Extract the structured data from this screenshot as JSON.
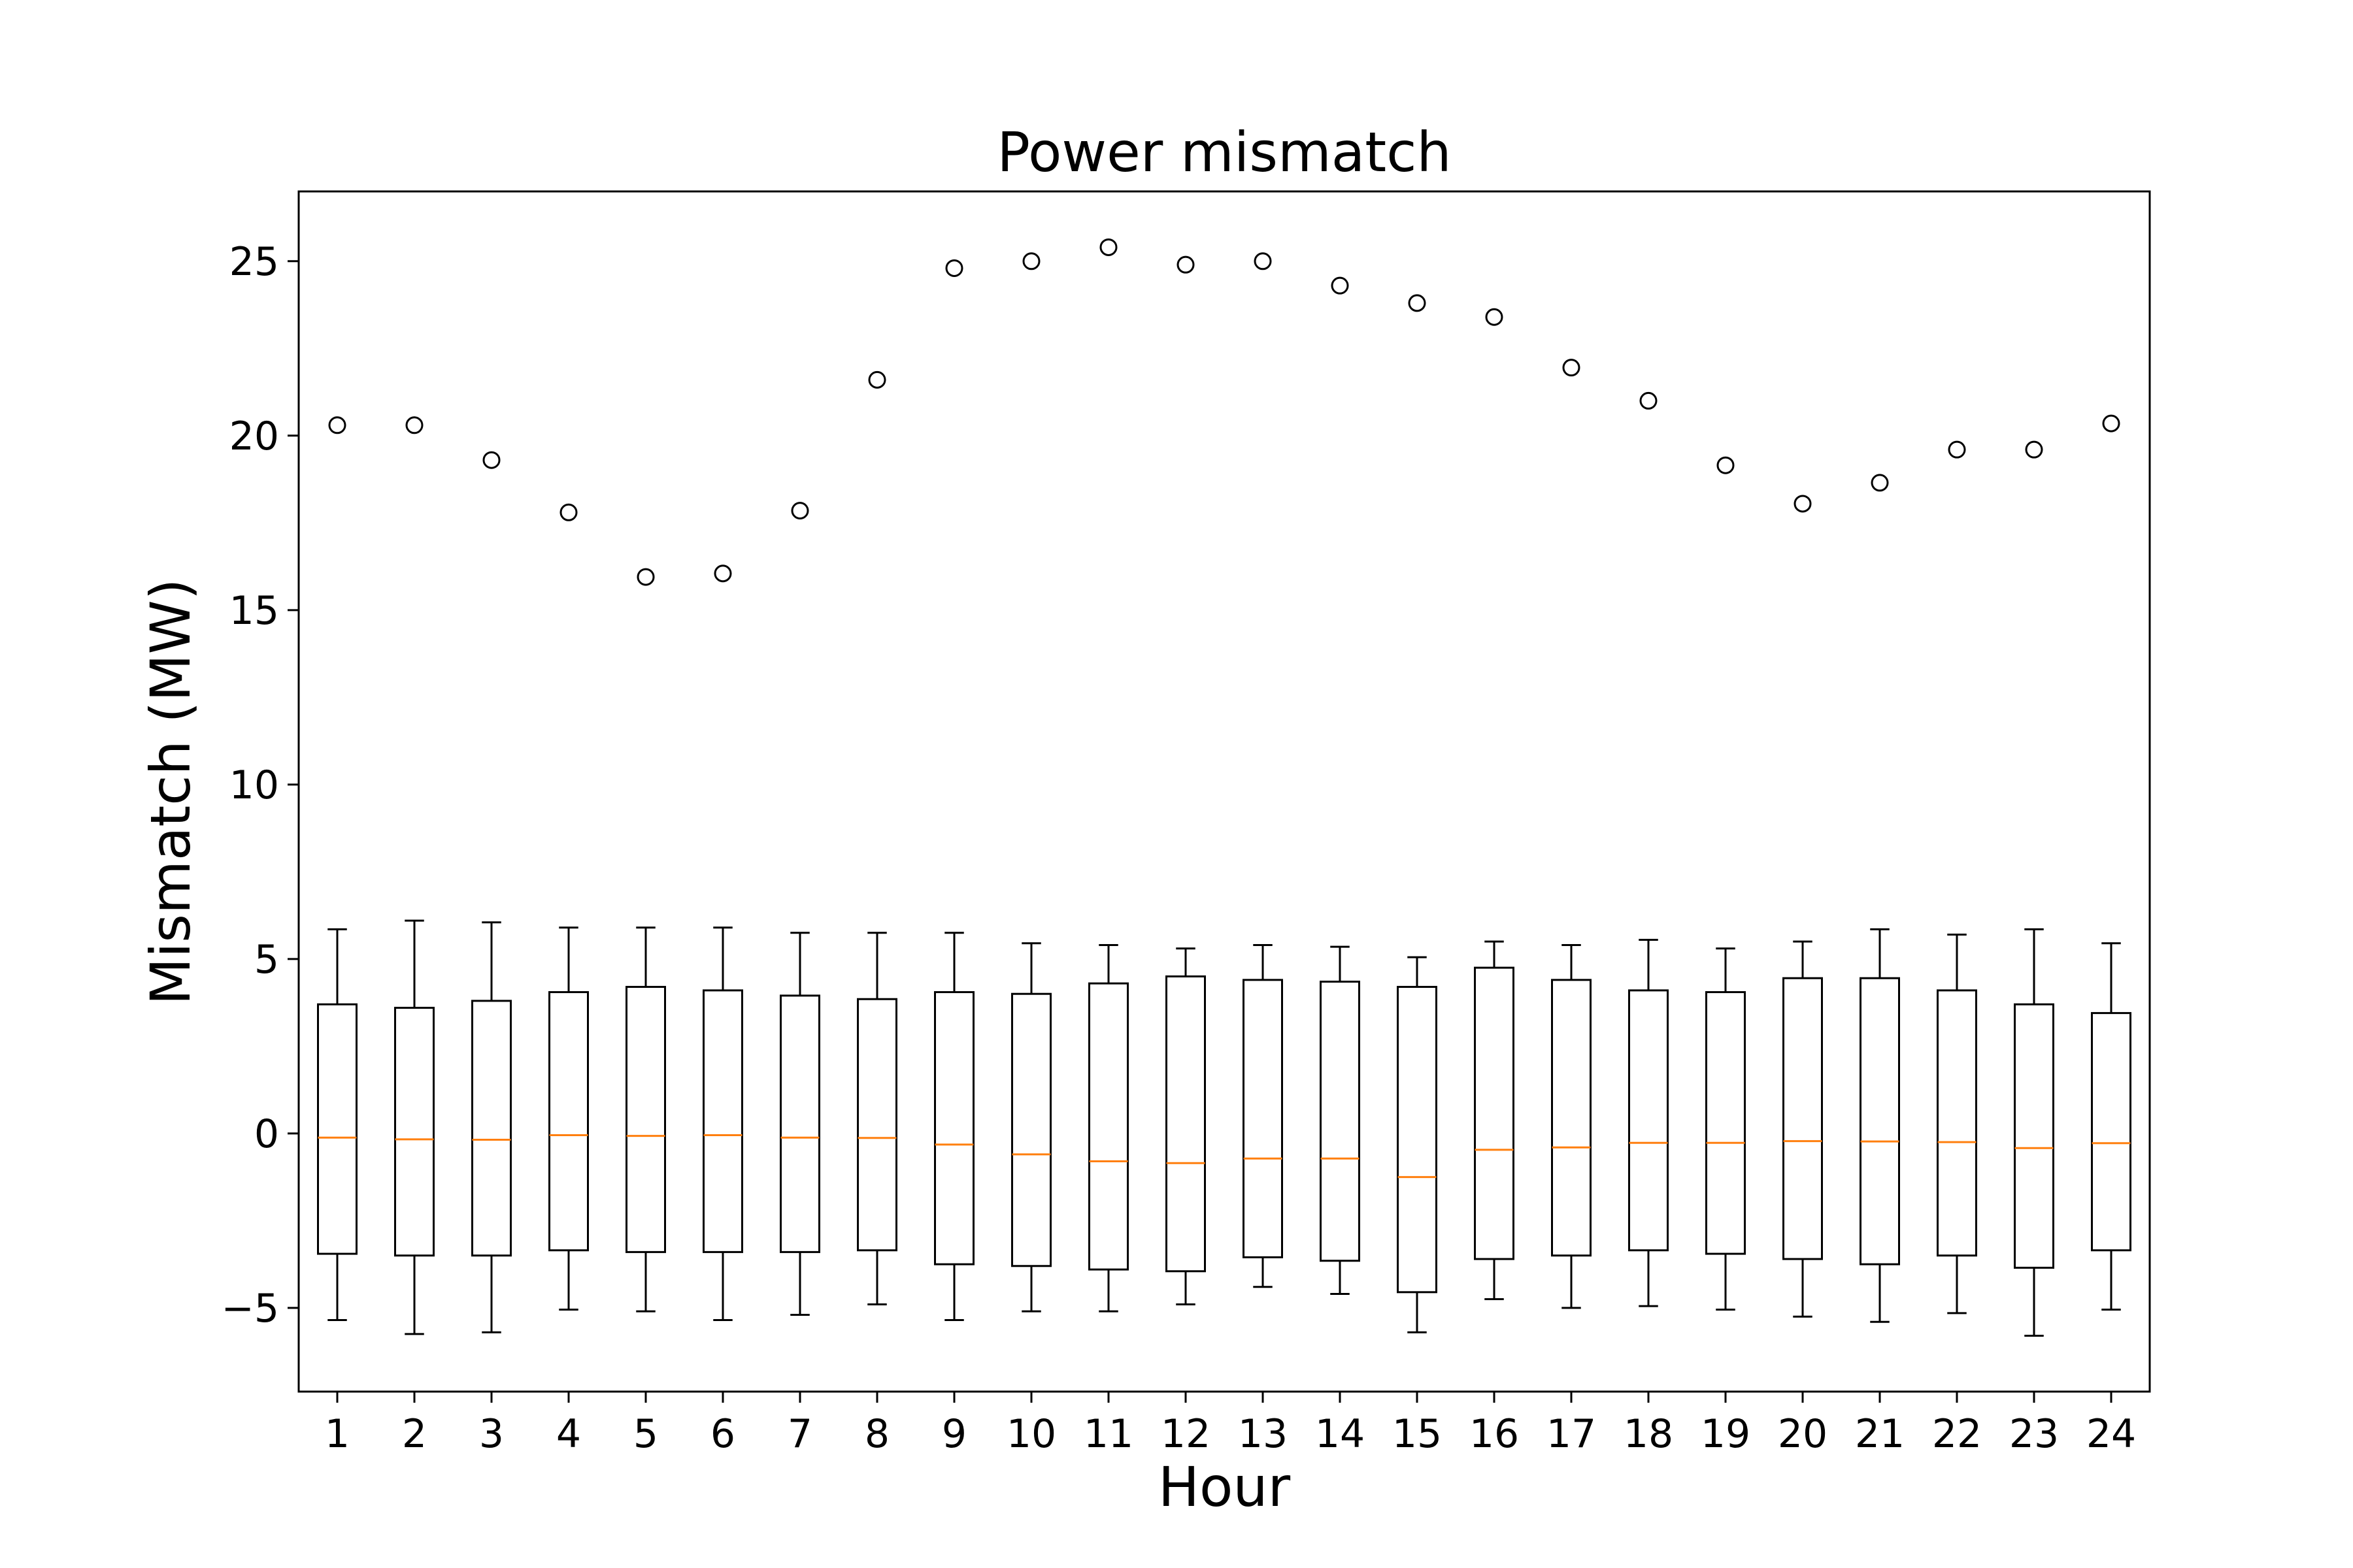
{
  "chart_data": {
    "type": "box",
    "title": "Power mismatch",
    "xlabel": "Hour",
    "ylabel": "Mismatch (MW)",
    "ylim": [
      -7.4,
      27
    ],
    "yticks": [
      -5,
      0,
      5,
      10,
      15,
      20,
      25
    ],
    "ytick_labels": [
      "−5",
      "0",
      "5",
      "10",
      "15",
      "20",
      "25"
    ],
    "grid": false,
    "categories": [
      "1",
      "2",
      "3",
      "4",
      "5",
      "6",
      "7",
      "8",
      "9",
      "10",
      "11",
      "12",
      "13",
      "14",
      "15",
      "16",
      "17",
      "18",
      "19",
      "20",
      "21",
      "22",
      "23",
      "24"
    ],
    "boxes": [
      {
        "hour": "1",
        "whisker_low": -5.35,
        "q1": -3.45,
        "median": -0.12,
        "q3": 3.7,
        "whisker_high": 5.85,
        "outliers": [
          20.3
        ]
      },
      {
        "hour": "2",
        "whisker_low": -5.75,
        "q1": -3.5,
        "median": -0.17,
        "q3": 3.6,
        "whisker_high": 6.1,
        "outliers": [
          20.3
        ]
      },
      {
        "hour": "3",
        "whisker_low": -5.7,
        "q1": -3.5,
        "median": -0.18,
        "q3": 3.8,
        "whisker_high": 6.05,
        "outliers": [
          19.3
        ]
      },
      {
        "hour": "4",
        "whisker_low": -5.05,
        "q1": -3.35,
        "median": -0.05,
        "q3": 4.05,
        "whisker_high": 5.9,
        "outliers": [
          17.8
        ]
      },
      {
        "hour": "5",
        "whisker_low": -5.1,
        "q1": -3.4,
        "median": -0.07,
        "q3": 4.2,
        "whisker_high": 5.9,
        "outliers": [
          15.95
        ]
      },
      {
        "hour": "6",
        "whisker_low": -5.35,
        "q1": -3.4,
        "median": -0.05,
        "q3": 4.1,
        "whisker_high": 5.9,
        "outliers": [
          16.05
        ]
      },
      {
        "hour": "7",
        "whisker_low": -5.2,
        "q1": -3.4,
        "median": -0.12,
        "q3": 3.95,
        "whisker_high": 5.75,
        "outliers": [
          17.85
        ]
      },
      {
        "hour": "8",
        "whisker_low": -4.9,
        "q1": -3.35,
        "median": -0.13,
        "q3": 3.85,
        "whisker_high": 5.75,
        "outliers": [
          21.6
        ]
      },
      {
        "hour": "9",
        "whisker_low": -5.35,
        "q1": -3.75,
        "median": -0.32,
        "q3": 4.05,
        "whisker_high": 5.75,
        "outliers": [
          24.8
        ]
      },
      {
        "hour": "10",
        "whisker_low": -5.1,
        "q1": -3.8,
        "median": -0.6,
        "q3": 4.0,
        "whisker_high": 5.45,
        "outliers": [
          25.0
        ]
      },
      {
        "hour": "11",
        "whisker_low": -5.1,
        "q1": -3.9,
        "median": -0.8,
        "q3": 4.3,
        "whisker_high": 5.4,
        "outliers": [
          25.4
        ]
      },
      {
        "hour": "12",
        "whisker_low": -4.9,
        "q1": -3.95,
        "median": -0.85,
        "q3": 4.5,
        "whisker_high": 5.3,
        "outliers": [
          24.9
        ]
      },
      {
        "hour": "13",
        "whisker_low": -4.4,
        "q1": -3.55,
        "median": -0.72,
        "q3": 4.4,
        "whisker_high": 5.4,
        "outliers": [
          25.0
        ]
      },
      {
        "hour": "14",
        "whisker_low": -4.6,
        "q1": -3.65,
        "median": -0.72,
        "q3": 4.35,
        "whisker_high": 5.35,
        "outliers": [
          24.3
        ]
      },
      {
        "hour": "15",
        "whisker_low": -5.7,
        "q1": -4.55,
        "median": -1.25,
        "q3": 4.2,
        "whisker_high": 5.05,
        "outliers": [
          23.8
        ]
      },
      {
        "hour": "16",
        "whisker_low": -4.75,
        "q1": -3.6,
        "median": -0.47,
        "q3": 4.75,
        "whisker_high": 5.5,
        "outliers": [
          23.4
        ]
      },
      {
        "hour": "17",
        "whisker_low": -5.0,
        "q1": -3.5,
        "median": -0.4,
        "q3": 4.4,
        "whisker_high": 5.4,
        "outliers": [
          21.95
        ]
      },
      {
        "hour": "18",
        "whisker_low": -4.95,
        "q1": -3.35,
        "median": -0.27,
        "q3": 4.1,
        "whisker_high": 5.55,
        "outliers": [
          21.0
        ]
      },
      {
        "hour": "19",
        "whisker_low": -5.05,
        "q1": -3.45,
        "median": -0.27,
        "q3": 4.05,
        "whisker_high": 5.3,
        "outliers": [
          19.15
        ]
      },
      {
        "hour": "20",
        "whisker_low": -5.25,
        "q1": -3.6,
        "median": -0.22,
        "q3": 4.45,
        "whisker_high": 5.5,
        "outliers": [
          18.05
        ]
      },
      {
        "hour": "21",
        "whisker_low": -5.4,
        "q1": -3.75,
        "median": -0.23,
        "q3": 4.45,
        "whisker_high": 5.85,
        "outliers": [
          18.65
        ]
      },
      {
        "hour": "22",
        "whisker_low": -5.15,
        "q1": -3.5,
        "median": -0.25,
        "q3": 4.1,
        "whisker_high": 5.7,
        "outliers": [
          19.6
        ]
      },
      {
        "hour": "23",
        "whisker_low": -5.8,
        "q1": -3.85,
        "median": -0.42,
        "q3": 3.7,
        "whisker_high": 5.85,
        "outliers": [
          19.6
        ]
      },
      {
        "hour": "24",
        "whisker_low": -5.05,
        "q1": -3.35,
        "median": -0.28,
        "q3": 3.45,
        "whisker_high": 5.45,
        "outliers": [
          20.35
        ]
      }
    ],
    "colors": {
      "box": "#000000",
      "median": "#ff7f0e",
      "outlier": "#000000"
    }
  }
}
